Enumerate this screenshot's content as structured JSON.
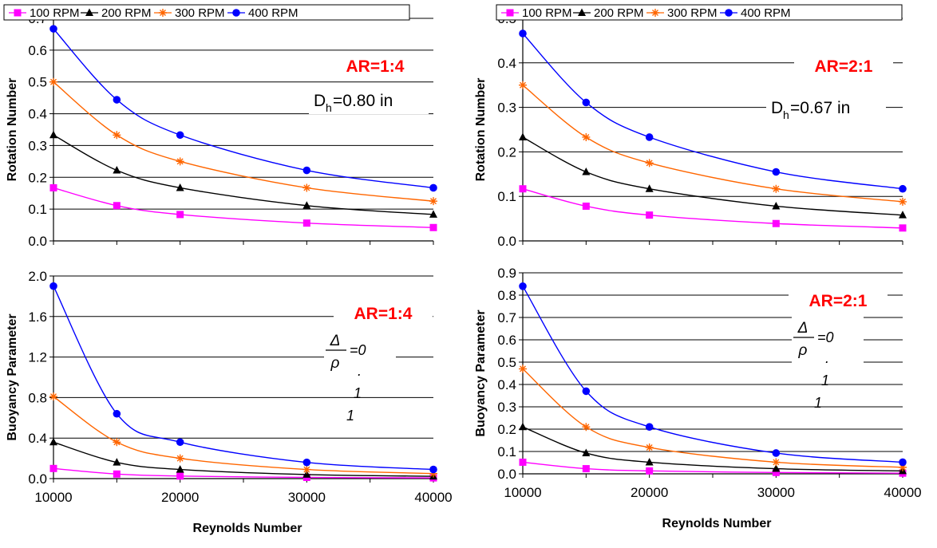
{
  "legend": [
    "100 RPM",
    "200 RPM",
    "300 RPM",
    "400 RPM"
  ],
  "series_colors": [
    "#ff00ff",
    "#000000",
    "#ff6600",
    "#0000ff"
  ],
  "series_markers": [
    "square",
    "triangle",
    "asterisk",
    "circle"
  ],
  "x_axis_label": "Reynolds Number",
  "chart_data": [
    {
      "type": "line",
      "ylabel": "Rotation Number",
      "xlabel": "",
      "x": [
        10000,
        15000,
        20000,
        30000,
        40000
      ],
      "ylim": [
        0,
        0.7
      ],
      "yticks": [
        "0.0",
        "0.1",
        "0.2",
        "0.3",
        "0.4",
        "0.5",
        "0.6",
        "0.7"
      ],
      "xticks": [],
      "grid": true,
      "annotations": [
        "AR=1:4",
        "D",
        "h",
        "=0.80 in"
      ],
      "series": [
        {
          "name": "100 RPM",
          "values": [
            0.167,
            0.111,
            0.083,
            0.056,
            0.042
          ]
        },
        {
          "name": "200 RPM",
          "values": [
            0.333,
            0.222,
            0.167,
            0.111,
            0.083
          ]
        },
        {
          "name": "300 RPM",
          "values": [
            0.5,
            0.333,
            0.25,
            0.167,
            0.125
          ]
        },
        {
          "name": "400 RPM",
          "values": [
            0.667,
            0.444,
            0.333,
            0.222,
            0.167
          ]
        }
      ]
    },
    {
      "type": "line",
      "ylabel": "Rotation Number",
      "xlabel": "",
      "x": [
        10000,
        15000,
        20000,
        30000,
        40000
      ],
      "ylim": [
        0,
        0.5
      ],
      "yticks": [
        "0.0",
        "0.1",
        "0.2",
        "0.3",
        "0.4",
        "0.5"
      ],
      "xticks": [],
      "grid": true,
      "annotations": [
        "AR=2:1",
        "D",
        "h",
        "=0.67 in"
      ],
      "series": [
        {
          "name": "100 RPM",
          "values": [
            0.117,
            0.078,
            0.058,
            0.039,
            0.029
          ]
        },
        {
          "name": "200 RPM",
          "values": [
            0.233,
            0.155,
            0.117,
            0.078,
            0.058
          ]
        },
        {
          "name": "300 RPM",
          "values": [
            0.35,
            0.233,
            0.175,
            0.117,
            0.088
          ]
        },
        {
          "name": "400 RPM",
          "values": [
            0.466,
            0.311,
            0.233,
            0.155,
            0.117
          ]
        }
      ]
    },
    {
      "type": "line",
      "ylabel": "Buoyancy Parameter",
      "xlabel": "Reynolds Number",
      "x": [
        10000,
        15000,
        20000,
        30000,
        40000
      ],
      "ylim": [
        0,
        2.0
      ],
      "yticks": [
        "0.0",
        "0.4",
        "0.8",
        "1.2",
        "1.6",
        "2.0"
      ],
      "xticks": [
        "10000",
        "20000",
        "30000",
        "40000"
      ],
      "grid": true,
      "annotations": [
        "AR=1:4",
        "Δ",
        "ρ",
        "=0",
        ".",
        "1",
        "1"
      ],
      "series": [
        {
          "name": "100 RPM",
          "values": [
            0.1,
            0.045,
            0.025,
            0.012,
            0.007
          ]
        },
        {
          "name": "200 RPM",
          "values": [
            0.36,
            0.16,
            0.09,
            0.04,
            0.023
          ]
        },
        {
          "name": "300 RPM",
          "values": [
            0.81,
            0.36,
            0.2,
            0.09,
            0.05
          ]
        },
        {
          "name": "400 RPM",
          "values": [
            1.9,
            0.64,
            0.36,
            0.16,
            0.09
          ]
        }
      ]
    },
    {
      "type": "line",
      "ylabel": "Buoyancy Parameter",
      "xlabel": "Reynolds Number",
      "x": [
        10000,
        15000,
        20000,
        30000,
        40000
      ],
      "ylim": [
        0,
        0.9
      ],
      "yticks": [
        "0.0",
        "0.1",
        "0.2",
        "0.3",
        "0.4",
        "0.5",
        "0.6",
        "0.7",
        "0.8",
        "0.9"
      ],
      "xticks": [
        "10000",
        "20000",
        "30000",
        "40000"
      ],
      "grid": true,
      "annotations": [
        "AR=2:1",
        "Δ",
        "ρ",
        "=0",
        ".",
        "1",
        "1"
      ],
      "series": [
        {
          "name": "100 RPM",
          "values": [
            0.052,
            0.023,
            0.013,
            0.006,
            0.003
          ]
        },
        {
          "name": "200 RPM",
          "values": [
            0.21,
            0.093,
            0.052,
            0.023,
            0.013
          ]
        },
        {
          "name": "300 RPM",
          "values": [
            0.47,
            0.21,
            0.118,
            0.052,
            0.029
          ]
        },
        {
          "name": "400 RPM",
          "values": [
            0.84,
            0.37,
            0.21,
            0.093,
            0.052
          ]
        }
      ]
    }
  ]
}
